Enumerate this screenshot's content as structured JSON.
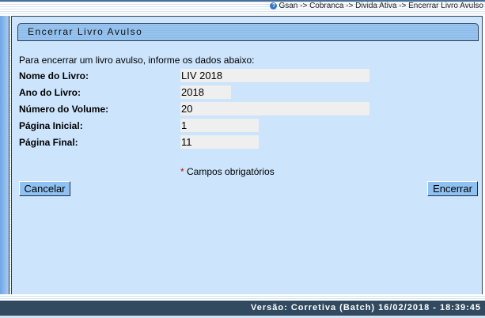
{
  "breadcrumb": "Gsan -> Cobranca -> Divida Ativa -> Encerrar Livro Avulso",
  "title": "Encerrar Livro Avulso",
  "instructions": "Para encerrar um livro avulso, informe os dados abaixo:",
  "fields": [
    {
      "label": "Nome do Livro:",
      "value": "LIV 2018"
    },
    {
      "label": "Ano do Livro:",
      "value": "2018"
    },
    {
      "label": "Número do Volume:",
      "value": "20"
    },
    {
      "label": "Página Inicial:",
      "value": "1"
    },
    {
      "label": "Página Final:",
      "value": "11"
    }
  ],
  "required_mark": "*",
  "required_note": "Campos obrigatórios",
  "buttons": {
    "cancel": "Cancelar",
    "submit": "Encerrar"
  },
  "footer": "Versão: Corretiva (Batch) 16/02/2018 - 18:39:45",
  "colors": {
    "panel": "#cce4fc",
    "footer": "#324a5f",
    "required": "#cc0000"
  }
}
